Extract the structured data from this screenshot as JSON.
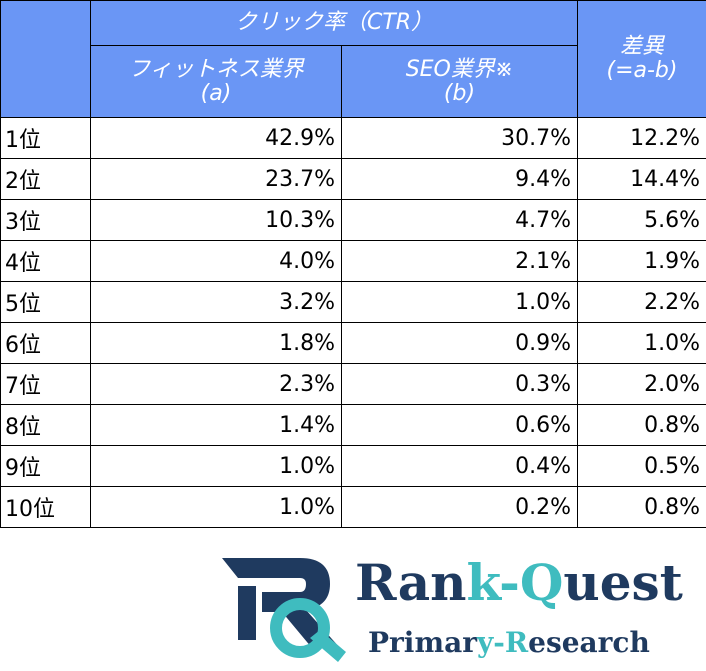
{
  "table": {
    "group_header": "クリック率（CTR）",
    "columns": [
      [
        "フィットネス業界",
        "(a)"
      ],
      [
        "SEO業界※",
        "(b)"
      ],
      [
        "差異",
        "(=a-b)"
      ]
    ],
    "rows": [
      [
        "1位",
        "42.9%",
        "30.7%",
        "12.2%"
      ],
      [
        "2位",
        "23.7%",
        "9.4%",
        "14.4%"
      ],
      [
        "3位",
        "10.3%",
        "4.7%",
        "5.6%"
      ],
      [
        "4位",
        "4.0%",
        "2.1%",
        "1.9%"
      ],
      [
        "5位",
        "3.2%",
        "1.0%",
        "2.2%"
      ],
      [
        "6位",
        "1.8%",
        "0.9%",
        "1.0%"
      ],
      [
        "7位",
        "2.3%",
        "0.3%",
        "2.0%"
      ],
      [
        "8位",
        "1.4%",
        "0.6%",
        "0.8%"
      ],
      [
        "9位",
        "1.0%",
        "0.4%",
        "0.5%"
      ],
      [
        "10位",
        "1.0%",
        "0.2%",
        "0.8%"
      ]
    ]
  },
  "logo": {
    "name": [
      "Ran",
      "k-Q",
      "uest"
    ],
    "tagline": [
      "Primar",
      "y-R",
      "esearch"
    ]
  }
}
